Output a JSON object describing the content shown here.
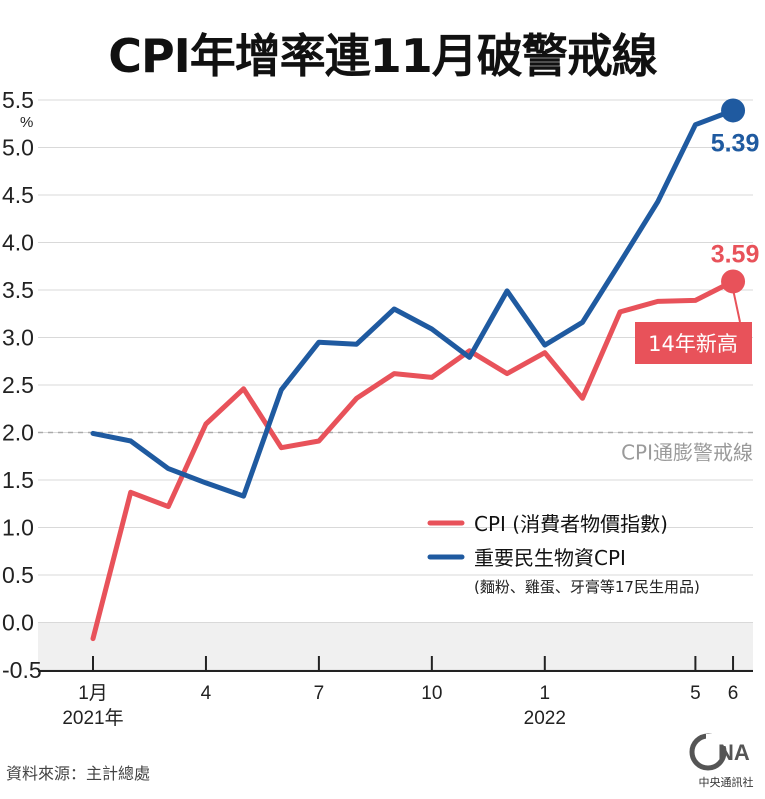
{
  "chart_data": {
    "type": "line",
    "title": "CPI年增率連11月破警戒線",
    "ylabel": "%",
    "ylim": [
      -0.5,
      5.5
    ],
    "yticks": [
      "-0.5",
      "0.0",
      "0.5",
      "1.0",
      "1.5",
      "2.0",
      "2.5",
      "3.0",
      "3.5",
      "4.0",
      "4.5",
      "5.0",
      "5.5"
    ],
    "xticks": [
      {
        "index": 0,
        "label": "1月",
        "sub": "2021年"
      },
      {
        "index": 3,
        "label": "4",
        "sub": ""
      },
      {
        "index": 6,
        "label": "7",
        "sub": ""
      },
      {
        "index": 9,
        "label": "10",
        "sub": ""
      },
      {
        "index": 12,
        "label": "1",
        "sub": "2022"
      },
      {
        "index": 16,
        "label": "5",
        "sub": ""
      },
      {
        "index": 17,
        "label": "6",
        "sub": ""
      }
    ],
    "x": [
      "2021-01",
      "2021-02",
      "2021-03",
      "2021-04",
      "2021-05",
      "2021-06",
      "2021-07",
      "2021-08",
      "2021-09",
      "2021-10",
      "2021-11",
      "2021-12",
      "2022-01",
      "2022-02",
      "2022-03",
      "2022-04",
      "2022-05",
      "2022-06"
    ],
    "series": [
      {
        "name": "CPI (消費者物價指數)",
        "color": "#e8525a",
        "values": [
          -0.17,
          1.37,
          1.22,
          2.09,
          2.46,
          1.84,
          1.91,
          2.36,
          2.62,
          2.58,
          2.86,
          2.62,
          2.84,
          2.36,
          3.27,
          3.38,
          3.39,
          3.59
        ],
        "end_label": "3.59"
      },
      {
        "name": "重要民生物資CPI",
        "color": "#1f5aa0",
        "values": [
          1.99,
          1.91,
          1.62,
          1.47,
          1.33,
          2.45,
          2.95,
          2.93,
          3.3,
          3.09,
          2.79,
          3.49,
          2.92,
          3.16,
          3.79,
          4.43,
          5.24,
          5.39
        ],
        "end_label": "5.39"
      }
    ],
    "legend_note": "(麵粉、雞蛋、牙膏等17民生用品)",
    "threshold": {
      "value": 2.0,
      "label": "CPI通膨警戒線"
    },
    "callout": "14年新高",
    "colors": {
      "cpi": "#e8525a",
      "necessities": "#1f5aa0",
      "grid": "#d9d9d9",
      "negative_band": "#f0f0f0",
      "threshold": "#aaaaaa"
    }
  },
  "source": "資料來源：主計總處",
  "logo": {
    "text": "中央通訊社",
    "mark": "CNA"
  }
}
